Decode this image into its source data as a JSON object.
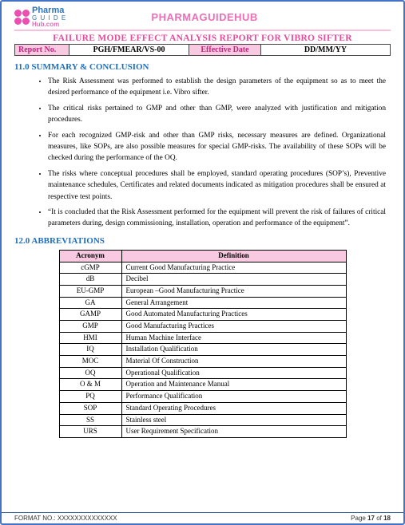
{
  "logo": {
    "line1": "Pharma",
    "line2": "G U I D E",
    "line3": "Hub.com"
  },
  "brand_title": "PHARMAGUIDEHUB",
  "doc_title": "FAILURE MODE EFFECT ANALYSIS REPORT FOR VIBRO SIFTER",
  "meta": {
    "report_no_label": "Report No.",
    "report_no_value": "PGH/FMEAR/VS-00",
    "eff_date_label": "Effective Date",
    "eff_date_value": "DD/MM/YY"
  },
  "section11": {
    "heading": "11.0  SUMMARY & CONCLUSION",
    "bullets": [
      "The Risk Assessment was performed to establish the design parameters of the equipment so as to meet the desired performance of the equipment i.e. Vibro sifter.",
      "The critical risks pertained to GMP and other than GMP, were analyzed with justification and mitigation procedures.",
      "For each recognized GMP-risk and other than GMP risks, necessary measures are defined. Organizational measures, like SOPs, are also possible measures for special GMP-risks. The availability of these SOPs will be checked during the performance of the OQ.",
      "The risks where conceptual procedures shall be employed, standard operating procedures (SOP’s), Preventive maintenance schedules, Certificates and related documents indicated as mitigation procedures shall be ensured at respective test points.",
      "“It is concluded that the Risk Assessment performed for the equipment will prevent the risk of failures of critical parameters during, design commissioning, installation, operation and performance of the equipment”."
    ]
  },
  "section12": {
    "heading": "12.0  ABBREVIATIONS",
    "columns": [
      "Acronym",
      "Definition"
    ],
    "rows": [
      [
        "cGMP",
        "Current Good Manufacturing Practice"
      ],
      [
        "dB",
        "Decibel"
      ],
      [
        "EU-GMP",
        "European –Good Manufacturing Practice"
      ],
      [
        "GA",
        "General Arrangement"
      ],
      [
        "GAMP",
        "Good Automated Manufacturing Practices"
      ],
      [
        "GMP",
        "Good Manufacturing Practices"
      ],
      [
        "HMI",
        "Human Machine Interface"
      ],
      [
        "IQ",
        "Installation Qualification"
      ],
      [
        "MOC",
        "Material Of Construction"
      ],
      [
        "OQ",
        "Operational Qualification"
      ],
      [
        "O & M",
        "Operation and Maintenance Manual"
      ],
      [
        "PQ",
        "Performance Qualification"
      ],
      [
        "SOP",
        "Standard Operating Procedures"
      ],
      [
        "SS",
        "Stainless steel"
      ],
      [
        "URS",
        "User Requirement Specification"
      ]
    ]
  },
  "footer": {
    "format": "FORMAT NO.: XXXXXXXXXXXXXX",
    "page_label": "Page ",
    "page_cur": "17",
    "page_of": " of ",
    "page_total": "18"
  },
  "colors": {
    "border": "#4472c4",
    "pink_text": "#ed6fb5",
    "pink_bg": "#f9c8e1",
    "blue_heading": "#1f6fc0"
  }
}
